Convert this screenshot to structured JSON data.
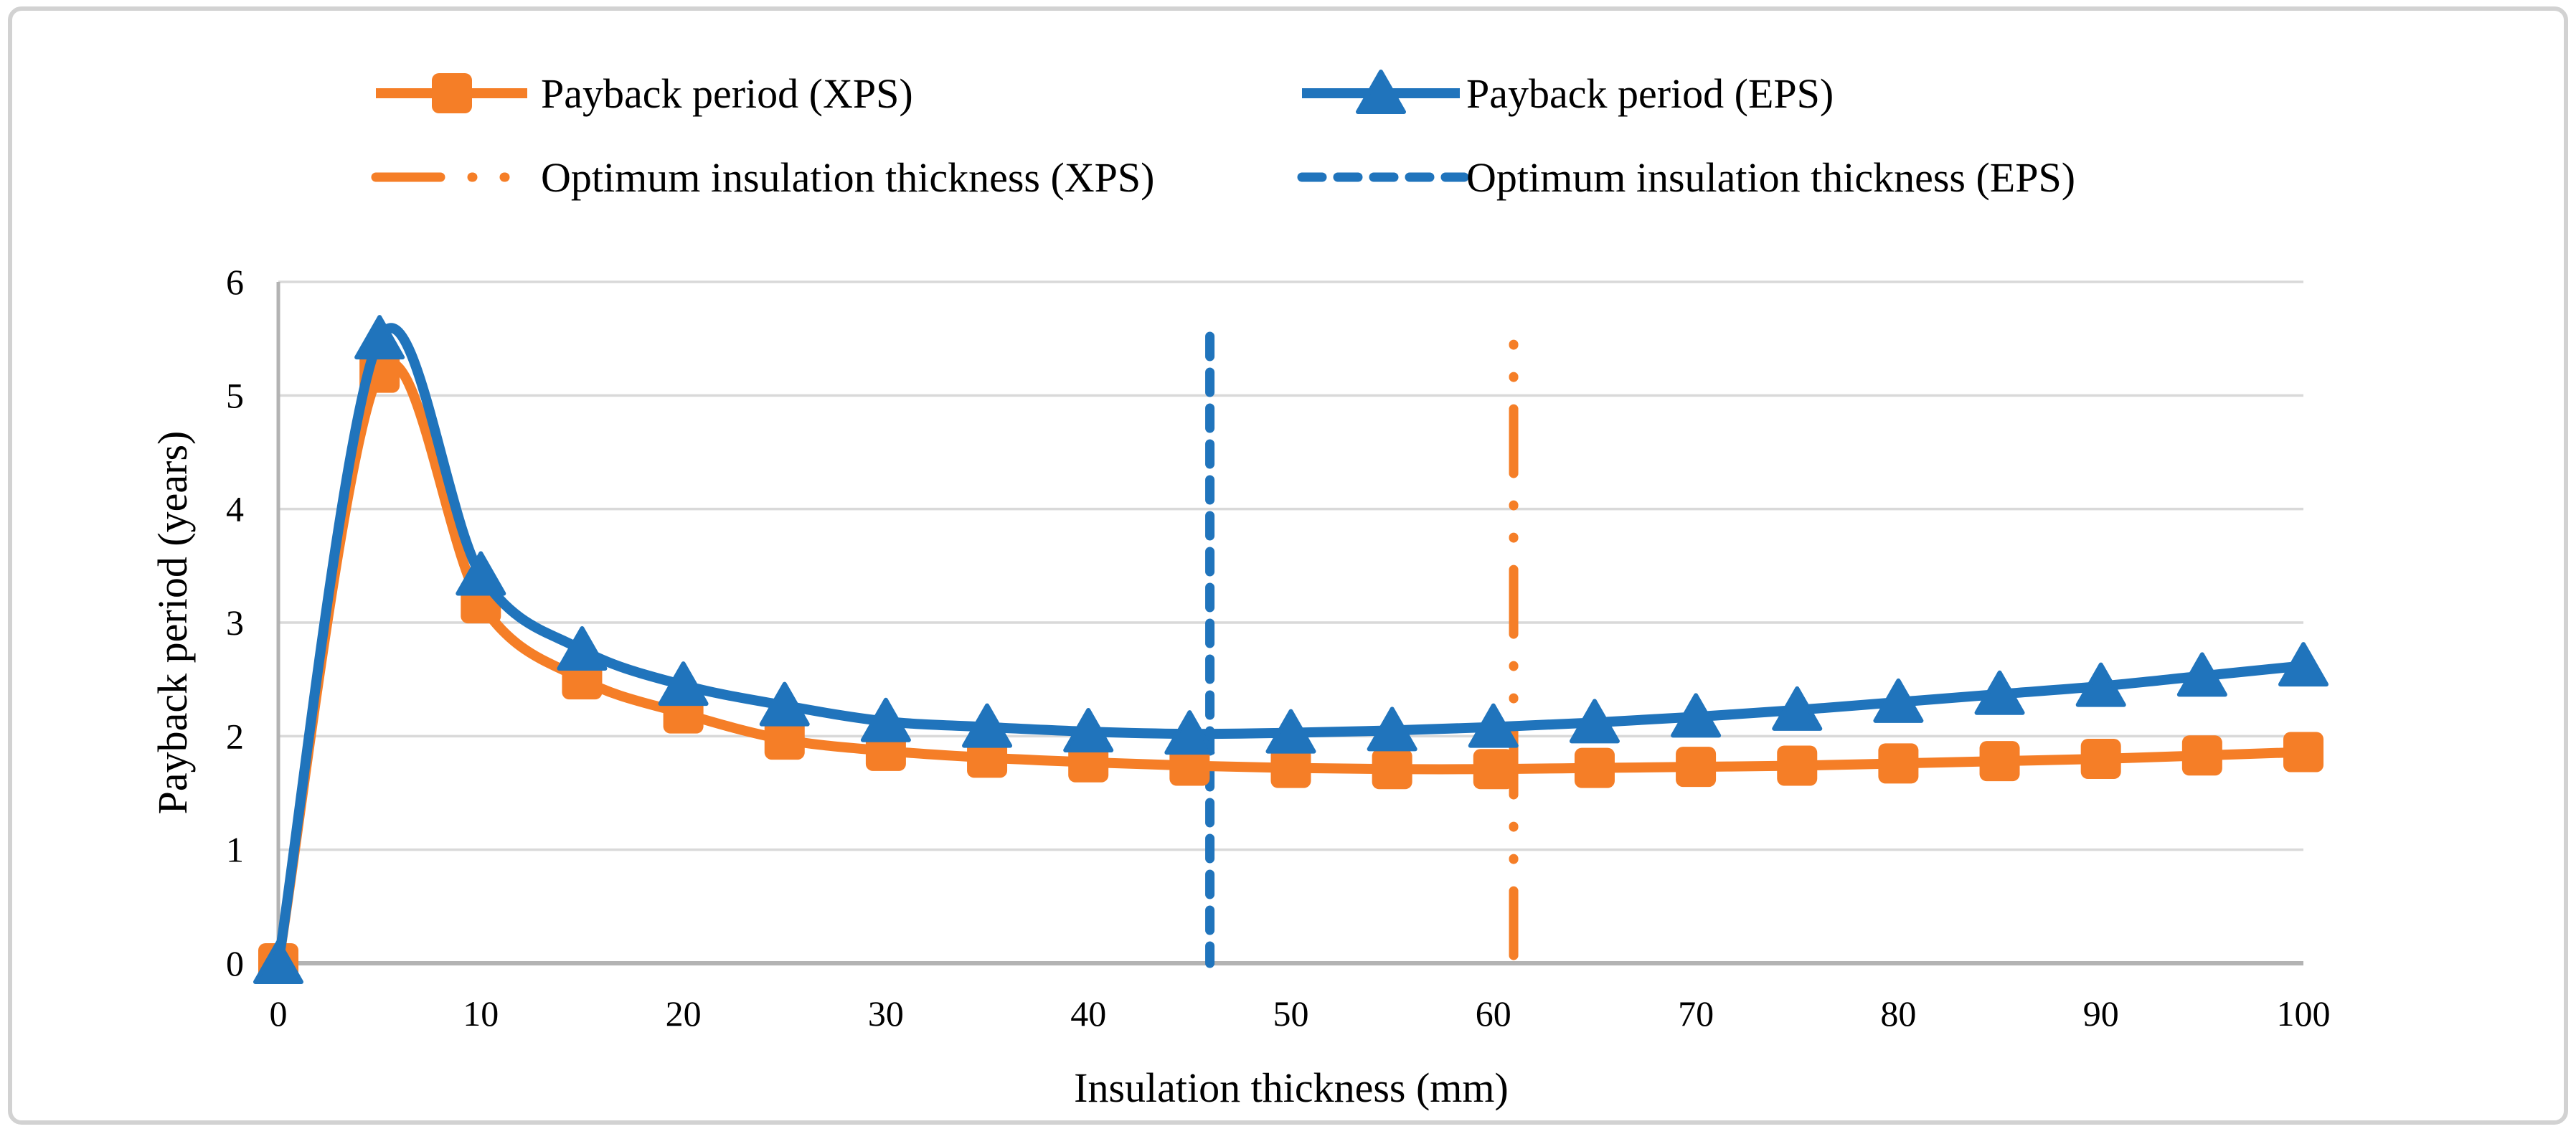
{
  "figure": {
    "background": "#ffffff",
    "border_color": "#D2D2D2"
  },
  "chart_data": {
    "type": "line",
    "title": "",
    "xlabel": "Insulation thickness (mm)",
    "ylabel": "Payback period (years)",
    "xlim": [
      0,
      100
    ],
    "ylim": [
      0,
      6
    ],
    "x_ticks": [
      0,
      10,
      20,
      30,
      40,
      50,
      60,
      70,
      80,
      90,
      100
    ],
    "y_ticks": [
      0,
      1,
      2,
      3,
      4,
      5,
      6
    ],
    "grid": "horizontal",
    "legend_position": "top",
    "colors": {
      "xps": "#F57E27",
      "eps": "#2074BC",
      "gridline": "#D9D9D9",
      "axis": "#B3B3B3",
      "text": "#000000"
    },
    "x": [
      0,
      5,
      10,
      15,
      20,
      25,
      30,
      35,
      40,
      45,
      50,
      55,
      60,
      65,
      70,
      75,
      80,
      85,
      90,
      95,
      100
    ],
    "series": [
      {
        "name": "Payback period (XPS)",
        "color": "#F57E27",
        "marker": "square",
        "line_style": "solid",
        "values": [
          0,
          5.2,
          3.17,
          2.5,
          2.2,
          1.97,
          1.87,
          1.81,
          1.77,
          1.74,
          1.72,
          1.71,
          1.71,
          1.72,
          1.73,
          1.74,
          1.76,
          1.78,
          1.8,
          1.83,
          1.86
        ]
      },
      {
        "name": "Payback period (EPS)",
        "color": "#2074BC",
        "marker": "triangle",
        "line_style": "solid",
        "values": [
          0,
          5.5,
          3.42,
          2.76,
          2.45,
          2.27,
          2.13,
          2.08,
          2.04,
          2.02,
          2.03,
          2.05,
          2.08,
          2.12,
          2.17,
          2.23,
          2.3,
          2.37,
          2.44,
          2.53,
          2.62
        ]
      }
    ],
    "vlines": [
      {
        "name": "Optimum insulation thickness (XPS)",
        "color": "#F57E27",
        "x": 61,
        "style": "dash-dot-dot",
        "top": 5.45
      },
      {
        "name": "Optimum insulation thickness (EPS)",
        "color": "#2074BC",
        "x": 46,
        "style": "dashed",
        "top": 5.52
      }
    ]
  }
}
